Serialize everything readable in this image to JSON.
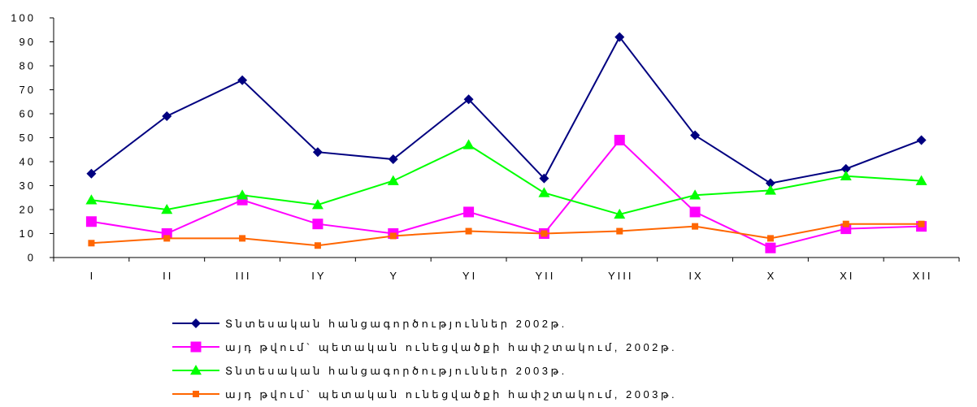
{
  "chart_data": {
    "type": "line",
    "title": "",
    "xlabel": "",
    "ylabel": "",
    "categories": [
      "I",
      "II",
      "III",
      "IY",
      "Y",
      "YI",
      "YII",
      "YIII",
      "IX",
      "X",
      "XI",
      "XII"
    ],
    "ylim": [
      0,
      100
    ],
    "yticks": [
      0,
      10,
      20,
      30,
      40,
      50,
      60,
      70,
      80,
      90,
      100
    ],
    "grid": false,
    "legend_position": "bottom",
    "series": [
      {
        "name": "Տնտեսական հանցագործություններ 2002թ.",
        "color": "#000080",
        "marker": "diamond",
        "values": [
          35,
          59,
          74,
          44,
          41,
          66,
          33,
          92,
          51,
          31,
          37,
          49
        ]
      },
      {
        "name": "այդ թվում` պետական ունեցվածքի հափշտակում, 2002թ.",
        "color": "#FF00FF",
        "marker": "square",
        "values": [
          15,
          10,
          24,
          14,
          10,
          19,
          10,
          49,
          19,
          4,
          12,
          13
        ]
      },
      {
        "name": "Տնտեսական հանցագործություններ 2003թ.",
        "color": "#00FF00",
        "marker": "triangle",
        "values": [
          24,
          20,
          26,
          22,
          32,
          47,
          27,
          18,
          26,
          28,
          34,
          32
        ]
      },
      {
        "name": "այդ թվում` պետական ունեցվածքի հափշտակում, 2003թ.",
        "color": "#FF6600",
        "marker": "small-square",
        "values": [
          6,
          8,
          8,
          5,
          9,
          11,
          10,
          11,
          13,
          8,
          14,
          14
        ]
      }
    ]
  }
}
